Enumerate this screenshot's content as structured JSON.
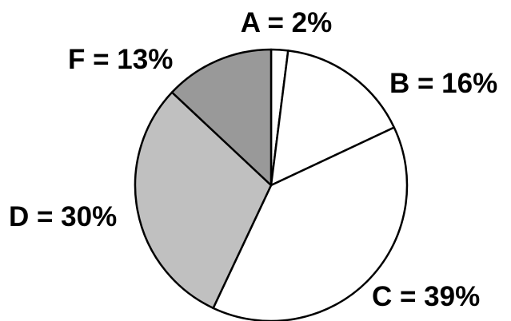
{
  "chart_data": {
    "type": "pie",
    "title": "",
    "start": "top",
    "direction": "clockwise",
    "slices": [
      {
        "key": "A",
        "label": "A = 2%",
        "value": 2,
        "color": "#ffffff"
      },
      {
        "key": "B",
        "label": "B = 16%",
        "value": 16,
        "color": "#ffffff"
      },
      {
        "key": "C",
        "label": "C = 39%",
        "value": 39,
        "color": "#ffffff"
      },
      {
        "key": "D",
        "label": "D = 30%",
        "value": 30,
        "color": "#c0c0c0"
      },
      {
        "key": "F",
        "label": "F = 13%",
        "value": 13,
        "color": "#999999"
      }
    ]
  }
}
